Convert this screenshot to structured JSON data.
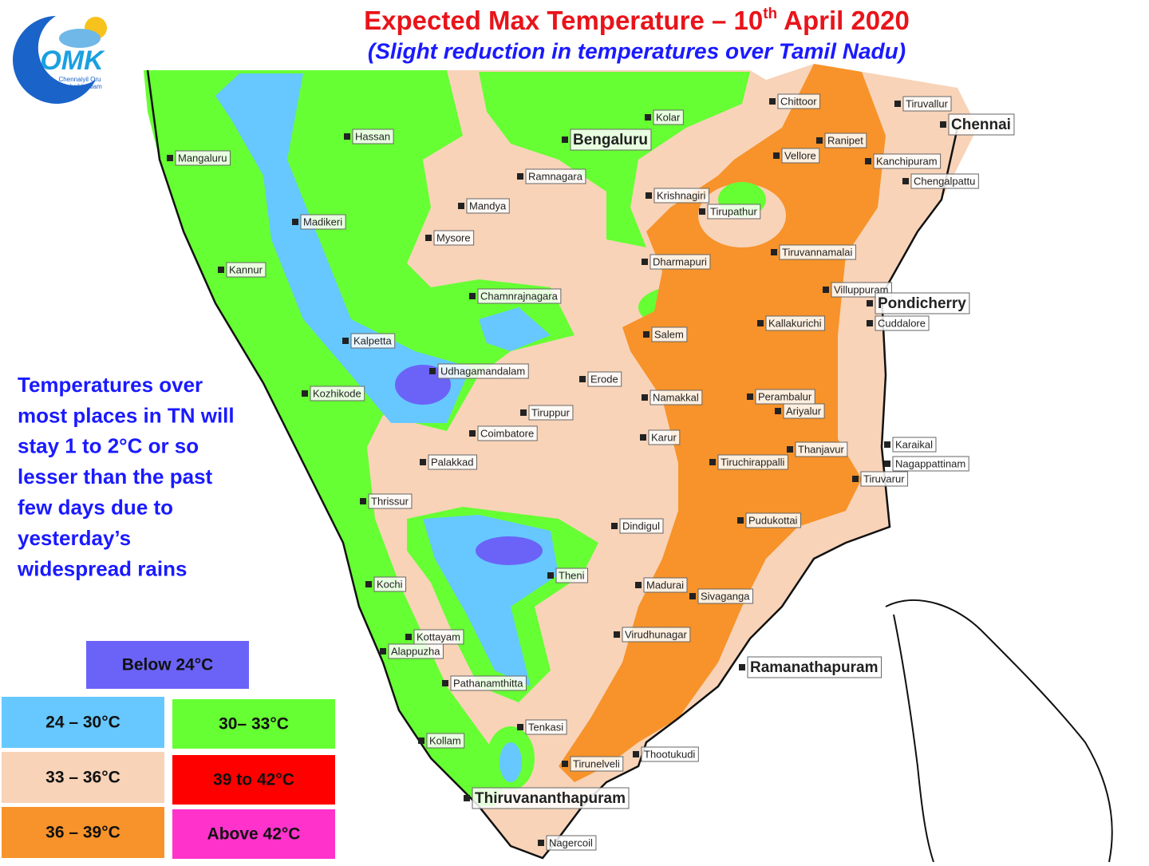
{
  "header": {
    "title": "Expected Max Temperature – 10",
    "title_sup": "th",
    "title_end": " April 2020",
    "subtitle": "(Slight reduction in temperatures over Tamil Nadu)"
  },
  "logo": {
    "mark": "OMK",
    "line1": "Chennaiyil Oru",
    "line2": "Mazhaikkaalam"
  },
  "note": [
    "Temperatures over",
    "most places in TN will",
    "stay 1 to 2°C or so",
    "lesser than the past",
    "few days due to",
    "yesterday’s",
    "widespread rains"
  ],
  "legend": [
    {
      "label": "Below 24°C",
      "color": "#6b63f7"
    },
    {
      "label": "24 – 30°C",
      "color": "#66c8ff"
    },
    {
      "label": "30– 33°C",
      "color": "#66ff33"
    },
    {
      "label": "33 – 36°C",
      "color": "#f8d3b8"
    },
    {
      "label": "39 to 42°C",
      "color": "#ff0000"
    },
    {
      "label": "36 – 39°C",
      "color": "#f7932a"
    },
    {
      "label": "Above 42°C",
      "color": "#ff33cc"
    }
  ],
  "cities": [
    "Hassan",
    "Mangaluru",
    "Bengaluru",
    "Kolar",
    "Chittoor",
    "Tiruvallur",
    "Chennai",
    "Ranipet",
    "Vellore",
    "Kanchipuram",
    "Chengalpattu",
    "Ramnagara",
    "Mandya",
    "Krishnagiri",
    "Tirupathur",
    "Madikeri",
    "Mysore",
    "Kannur",
    "Dharmapuri",
    "Tiruvannamalai",
    "Villuppuram",
    "Pondicherry",
    "Chamnrajnagara",
    "Cuddalore",
    "Kallakurichi",
    "Salem",
    "Kalpetta",
    "Udhagamandalam",
    "Erode",
    "Kozhikode",
    "Namakkal",
    "Perambalur",
    "Ariyalur",
    "Tiruppur",
    "Coimbatore",
    "Karur",
    "Thanjavur",
    "Karaikal",
    "Palakkad",
    "Tiruchirappalli",
    "Nagappattinam",
    "Tiruvarur",
    "Thrissur",
    "Pudukottai",
    "Dindigul",
    "Kochi",
    "Theni",
    "Madurai",
    "Sivaganga",
    "Kottayam",
    "Virudhunagar",
    "Alappuzha",
    "Ramanathapuram",
    "Pathanamthitta",
    "Tenkasi",
    "Kollam",
    "Thootukudi",
    "Tirunelveli",
    "Thiruvananthapuram",
    "Nagercoil"
  ]
}
